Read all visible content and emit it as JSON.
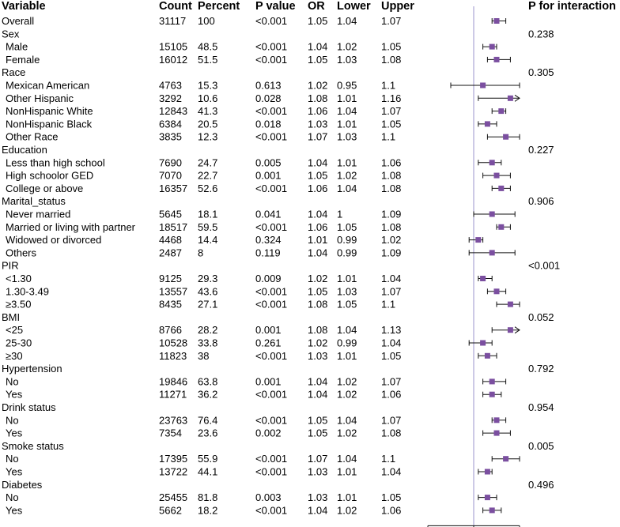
{
  "chart_data": {
    "type": "forest",
    "columns": [
      "Variable",
      "Count",
      "Percent",
      "P value",
      "OR",
      "Lower",
      "Upper",
      "P for interaction"
    ],
    "rows": [
      {
        "label": "Overall",
        "level": 0,
        "count": "31117",
        "percent": "100",
        "p": "<0.001",
        "or": "1.05",
        "lower": "1.04",
        "upper": "1.07",
        "pint": ""
      },
      {
        "label": "Sex",
        "level": 0,
        "count": "",
        "percent": "",
        "p": "",
        "or": "",
        "lower": "",
        "upper": "",
        "pint": "0.238"
      },
      {
        "label": "Male",
        "level": 1,
        "count": "15105",
        "percent": "48.5",
        "p": "<0.001",
        "or": "1.04",
        "lower": "1.02",
        "upper": "1.05",
        "pint": ""
      },
      {
        "label": "Female",
        "level": 1,
        "count": "16012",
        "percent": "51.5",
        "p": "<0.001",
        "or": "1.05",
        "lower": "1.03",
        "upper": "1.08",
        "pint": ""
      },
      {
        "label": "Race",
        "level": 0,
        "count": "",
        "percent": "",
        "p": "",
        "or": "",
        "lower": "",
        "upper": "",
        "pint": "0.305"
      },
      {
        "label": "Mexican American",
        "level": 1,
        "count": "4763",
        "percent": "15.3",
        "p": "0.613",
        "or": "1.02",
        "lower": "0.95",
        "upper": "1.1",
        "pint": ""
      },
      {
        "label": "Other Hispanic",
        "level": 1,
        "count": "3292",
        "percent": "10.6",
        "p": "0.028",
        "or": "1.08",
        "lower": "1.01",
        "upper": "1.16",
        "pint": ""
      },
      {
        "label": "NonHispanic White",
        "level": 1,
        "count": "12843",
        "percent": "41.3",
        "p": "<0.001",
        "or": "1.06",
        "lower": "1.04",
        "upper": "1.07",
        "pint": ""
      },
      {
        "label": "NonHispanic Black",
        "level": 1,
        "count": "6384",
        "percent": "20.5",
        "p": "0.018",
        "or": "1.03",
        "lower": "1.01",
        "upper": "1.05",
        "pint": ""
      },
      {
        "label": "Other Race",
        "level": 1,
        "count": "3835",
        "percent": "12.3",
        "p": "<0.001",
        "or": "1.07",
        "lower": "1.03",
        "upper": "1.1",
        "pint": ""
      },
      {
        "label": "Education",
        "level": 0,
        "count": "",
        "percent": "",
        "p": "",
        "or": "",
        "lower": "",
        "upper": "",
        "pint": "0.227"
      },
      {
        "label": "Less than high school",
        "level": 1,
        "count": "7690",
        "percent": "24.7",
        "p": "0.005",
        "or": "1.04",
        "lower": "1.01",
        "upper": "1.06",
        "pint": ""
      },
      {
        "label": "High schoolor GED",
        "level": 1,
        "count": "7070",
        "percent": "22.7",
        "p": "0.001",
        "or": "1.05",
        "lower": "1.02",
        "upper": "1.08",
        "pint": ""
      },
      {
        "label": "College or above",
        "level": 1,
        "count": "16357",
        "percent": "52.6",
        "p": "<0.001",
        "or": "1.06",
        "lower": "1.04",
        "upper": "1.08",
        "pint": ""
      },
      {
        "label": "Marital_status",
        "level": 0,
        "count": "",
        "percent": "",
        "p": "",
        "or": "",
        "lower": "",
        "upper": "",
        "pint": "0.906"
      },
      {
        "label": "Never married",
        "level": 1,
        "count": "5645",
        "percent": "18.1",
        "p": "0.041",
        "or": "1.04",
        "lower": "1",
        "upper": "1.09",
        "pint": ""
      },
      {
        "label": "Married or living with partner",
        "level": 1,
        "count": "18517",
        "percent": "59.5",
        "p": "<0.001",
        "or": "1.06",
        "lower": "1.05",
        "upper": "1.08",
        "pint": ""
      },
      {
        "label": "Widowed or divorced",
        "level": 1,
        "count": "4468",
        "percent": "14.4",
        "p": "0.324",
        "or": "1.01",
        "lower": "0.99",
        "upper": "1.02",
        "pint": ""
      },
      {
        "label": "Others",
        "level": 1,
        "count": "2487",
        "percent": "8",
        "p": "0.119",
        "or": "1.04",
        "lower": "0.99",
        "upper": "1.09",
        "pint": ""
      },
      {
        "label": "PIR",
        "level": 0,
        "count": "",
        "percent": "",
        "p": "",
        "or": "",
        "lower": "",
        "upper": "",
        "pint": "<0.001"
      },
      {
        "label": "<1.30",
        "level": 1,
        "count": "9125",
        "percent": "29.3",
        "p": "0.009",
        "or": "1.02",
        "lower": "1.01",
        "upper": "1.04",
        "pint": ""
      },
      {
        "label": "1.30-3.49",
        "level": 1,
        "count": "13557",
        "percent": "43.6",
        "p": "<0.001",
        "or": "1.05",
        "lower": "1.03",
        "upper": "1.07",
        "pint": ""
      },
      {
        "label": "≥3.50",
        "level": 1,
        "count": "8435",
        "percent": "27.1",
        "p": "<0.001",
        "or": "1.08",
        "lower": "1.05",
        "upper": "1.1",
        "pint": ""
      },
      {
        "label": "BMI",
        "level": 0,
        "count": "",
        "percent": "",
        "p": "",
        "or": "",
        "lower": "",
        "upper": "",
        "pint": "0.052"
      },
      {
        "label": "<25",
        "level": 1,
        "count": "8766",
        "percent": "28.2",
        "p": "0.001",
        "or": "1.08",
        "lower": "1.04",
        "upper": "1.13",
        "pint": ""
      },
      {
        "label": "25-30",
        "level": 1,
        "count": "10528",
        "percent": "33.8",
        "p": "0.261",
        "or": "1.02",
        "lower": "0.99",
        "upper": "1.04",
        "pint": ""
      },
      {
        "label": "≥30",
        "level": 1,
        "count": "11823",
        "percent": "38",
        "p": "<0.001",
        "or": "1.03",
        "lower": "1.01",
        "upper": "1.05",
        "pint": ""
      },
      {
        "label": "Hypertension",
        "level": 0,
        "count": "",
        "percent": "",
        "p": "",
        "or": "",
        "lower": "",
        "upper": "",
        "pint": "0.792"
      },
      {
        "label": "No",
        "level": 1,
        "count": "19846",
        "percent": "63.8",
        "p": "0.001",
        "or": "1.04",
        "lower": "1.02",
        "upper": "1.07",
        "pint": ""
      },
      {
        "label": "Yes",
        "level": 1,
        "count": "11271",
        "percent": "36.2",
        "p": "<0.001",
        "or": "1.04",
        "lower": "1.02",
        "upper": "1.06",
        "pint": ""
      },
      {
        "label": "Drink status",
        "level": 0,
        "count": "",
        "percent": "",
        "p": "",
        "or": "",
        "lower": "",
        "upper": "",
        "pint": "0.954"
      },
      {
        "label": "No",
        "level": 1,
        "count": "23763",
        "percent": "76.4",
        "p": "<0.001",
        "or": "1.05",
        "lower": "1.04",
        "upper": "1.07",
        "pint": ""
      },
      {
        "label": "Yes",
        "level": 1,
        "count": "7354",
        "percent": "23.6",
        "p": "0.002",
        "or": "1.05",
        "lower": "1.02",
        "upper": "1.08",
        "pint": ""
      },
      {
        "label": "Smoke status",
        "level": 0,
        "count": "",
        "percent": "",
        "p": "",
        "or": "",
        "lower": "",
        "upper": "",
        "pint": "0.005"
      },
      {
        "label": "No",
        "level": 1,
        "count": "17395",
        "percent": "55.9",
        "p": "<0.001",
        "or": "1.07",
        "lower": "1.04",
        "upper": "1.1",
        "pint": ""
      },
      {
        "label": "Yes",
        "level": 1,
        "count": "13722",
        "percent": "44.1",
        "p": "<0.001",
        "or": "1.03",
        "lower": "1.01",
        "upper": "1.04",
        "pint": ""
      },
      {
        "label": "Diabetes",
        "level": 0,
        "count": "",
        "percent": "",
        "p": "",
        "or": "",
        "lower": "",
        "upper": "",
        "pint": "0.496"
      },
      {
        "label": "No",
        "level": 1,
        "count": "25455",
        "percent": "81.8",
        "p": "0.003",
        "or": "1.03",
        "lower": "1.01",
        "upper": "1.05",
        "pint": ""
      },
      {
        "label": "Yes",
        "level": 1,
        "count": "5662",
        "percent": "18.2",
        "p": "<0.001",
        "or": "1.04",
        "lower": "1.02",
        "upper": "1.06",
        "pint": ""
      }
    ],
    "x_axis": {
      "min": 0.9,
      "max": 1.1,
      "ticks": [
        "0.9",
        "1",
        "1.1"
      ],
      "reference": 1
    },
    "grid": false,
    "colors": {
      "point": "#7b4fa0",
      "ci_line": "#111111",
      "reference_line": "#9b94cc",
      "text": "#111111"
    }
  }
}
